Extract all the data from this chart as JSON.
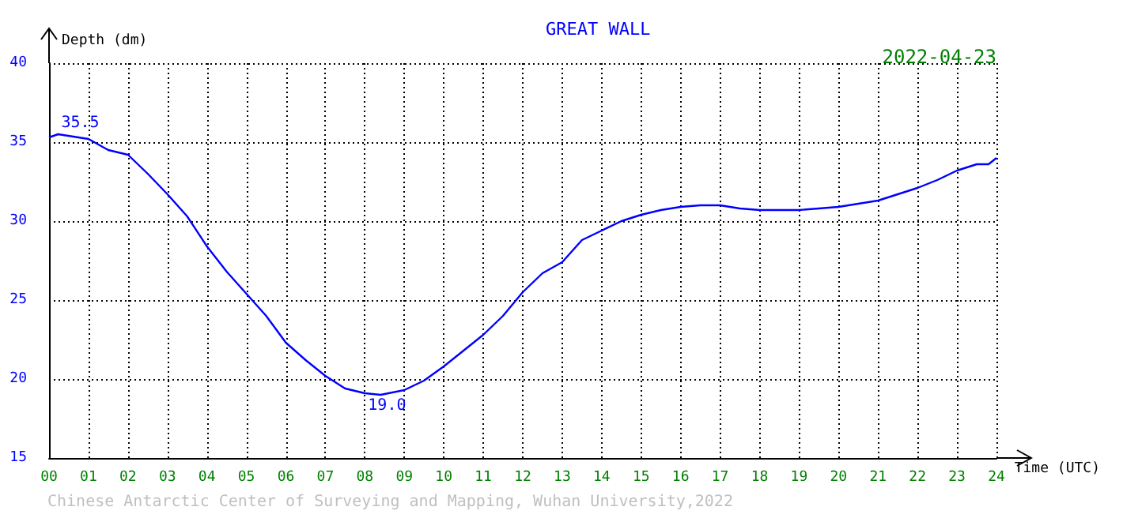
{
  "chart_data": {
    "type": "line",
    "title": "GREAT WALL",
    "xlabel": "Time (UTC)",
    "ylabel": "Depth (dm)",
    "x": [
      0,
      0.23,
      1,
      1.5,
      2,
      2.5,
      3,
      3.5,
      4,
      4.5,
      5,
      5.5,
      6,
      6.5,
      7,
      7.5,
      8,
      8.4,
      9,
      9.5,
      10,
      10.5,
      11,
      11.5,
      12,
      12.5,
      13,
      13.5,
      14,
      14.5,
      15,
      15.5,
      16,
      16.5,
      17,
      17.5,
      18,
      18.5,
      19,
      19.5,
      20,
      20.5,
      21,
      21.5,
      22,
      22.5,
      23,
      23.5,
      23.8,
      24
    ],
    "series": [
      {
        "color": "#0000ff",
        "values": [
          35.3,
          35.5,
          35.2,
          34.5,
          34.2,
          33.0,
          31.7,
          30.3,
          28.4,
          26.8,
          25.4,
          24.0,
          22.3,
          21.2,
          20.2,
          19.4,
          19.1,
          19.0,
          19.3,
          19.9,
          20.8,
          21.8,
          22.8,
          24.0,
          25.5,
          26.7,
          27.4,
          28.8,
          29.4,
          30.0,
          30.4,
          30.7,
          30.9,
          31.0,
          31.0,
          30.8,
          30.7,
          30.7,
          30.7,
          30.8,
          30.9,
          31.1,
          31.3,
          31.7,
          32.1,
          32.6,
          33.2,
          33.6,
          33.6,
          34.0
        ]
      }
    ],
    "xlim": [
      0,
      24
    ],
    "ylim": [
      15,
      40
    ],
    "xticks": [
      {
        "value": 0,
        "label": "00"
      },
      {
        "value": 1,
        "label": "01"
      },
      {
        "value": 2,
        "label": "02"
      },
      {
        "value": 3,
        "label": "03"
      },
      {
        "value": 4,
        "label": "04"
      },
      {
        "value": 5,
        "label": "05"
      },
      {
        "value": 6,
        "label": "06"
      },
      {
        "value": 7,
        "label": "07"
      },
      {
        "value": 8,
        "label": "08"
      },
      {
        "value": 9,
        "label": "09"
      },
      {
        "value": 10,
        "label": "10"
      },
      {
        "value": 11,
        "label": "11"
      },
      {
        "value": 12,
        "label": "12"
      },
      {
        "value": 13,
        "label": "13"
      },
      {
        "value": 14,
        "label": "14"
      },
      {
        "value": 15,
        "label": "15"
      },
      {
        "value": 16,
        "label": "16"
      },
      {
        "value": 17,
        "label": "17"
      },
      {
        "value": 18,
        "label": "18"
      },
      {
        "value": 19,
        "label": "19"
      },
      {
        "value": 20,
        "label": "20"
      },
      {
        "value": 21,
        "label": "21"
      },
      {
        "value": 22,
        "label": "22"
      },
      {
        "value": 23,
        "label": "23"
      },
      {
        "value": 24,
        "label": "24"
      }
    ],
    "yticks": [
      15,
      20,
      25,
      30,
      35,
      40
    ],
    "grid": true,
    "line_style": "solid",
    "marker": "none",
    "annotations": [
      {
        "text": "35.5",
        "x": 0.23,
        "y": 35.5
      },
      {
        "text": "19.0",
        "x": 8.4,
        "y": 19.0
      },
      "2022-04-23",
      "Chinese Antarctic Center of Surveying and Mapping, Wuhan University,2022"
    ]
  }
}
